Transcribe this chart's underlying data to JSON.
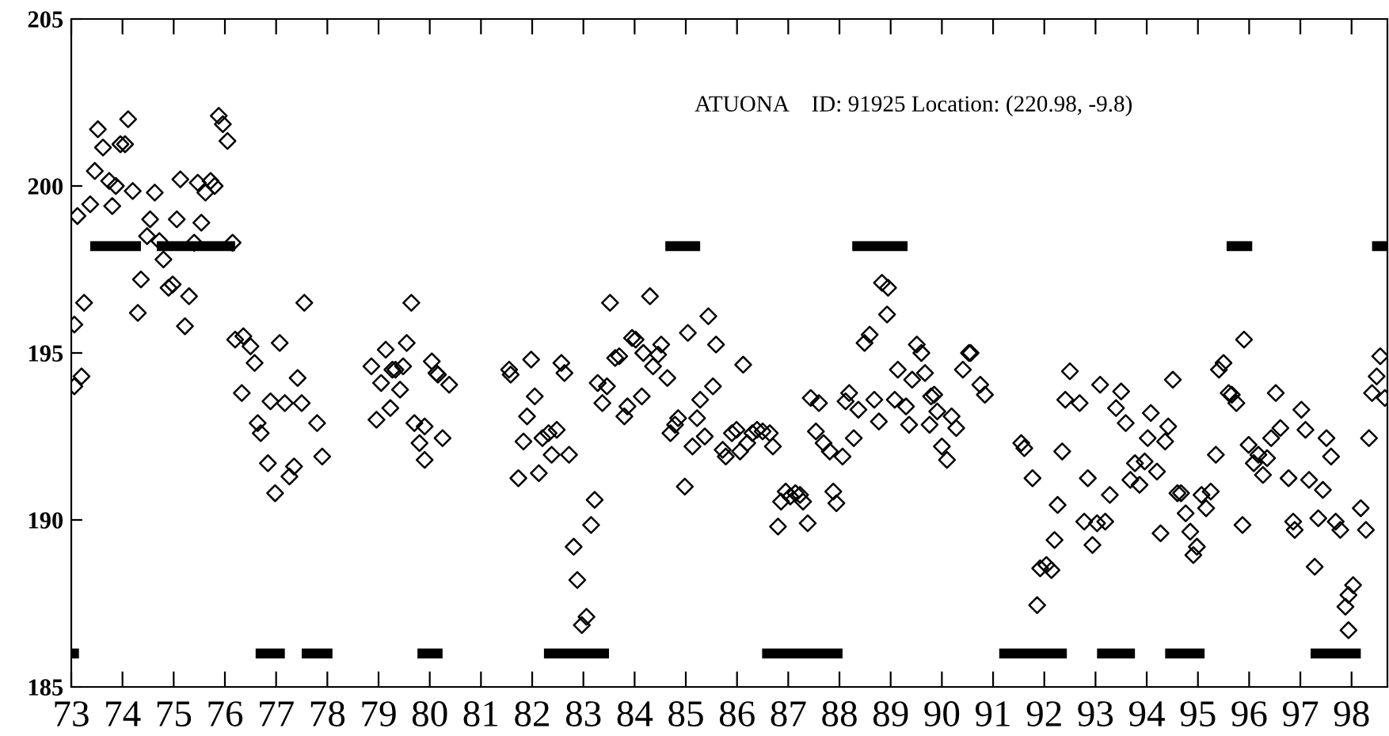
{
  "chart_data": {
    "type": "scatter",
    "xlim": [
      73,
      98.7
    ],
    "ylim": [
      185,
      205
    ],
    "xticks": [
      {
        "value": 73,
        "label": "73"
      },
      {
        "value": 74,
        "label": "74"
      },
      {
        "value": 75,
        "label": "75"
      },
      {
        "value": 76,
        "label": "76"
      },
      {
        "value": 77,
        "label": "77"
      },
      {
        "value": 78,
        "label": "78"
      },
      {
        "value": 79,
        "label": "79"
      },
      {
        "value": 80,
        "label": "80"
      },
      {
        "value": 81,
        "label": "81"
      },
      {
        "value": 82,
        "label": "82"
      },
      {
        "value": 83,
        "label": "83"
      },
      {
        "value": 84,
        "label": "84"
      },
      {
        "value": 85,
        "label": "85"
      },
      {
        "value": 86,
        "label": "86"
      },
      {
        "value": 87,
        "label": "87"
      },
      {
        "value": 88,
        "label": "88"
      },
      {
        "value": 89,
        "label": "89"
      },
      {
        "value": 90,
        "label": "90"
      },
      {
        "value": 91,
        "label": "91"
      },
      {
        "value": 92,
        "label": "92"
      },
      {
        "value": 93,
        "label": "93"
      },
      {
        "value": 94,
        "label": "94"
      },
      {
        "value": 95,
        "label": "95"
      },
      {
        "value": 96,
        "label": "96"
      },
      {
        "value": 97,
        "label": "97"
      },
      {
        "value": 98,
        "label": "98"
      }
    ],
    "yticks": [
      185,
      190,
      195,
      200,
      205
    ],
    "grid": false,
    "legend": false,
    "annotations": [
      "ATUONA    ID: 91925 Location: (220.98, -9.8)"
    ],
    "series": [
      {
        "marker": "diamond",
        "color": "#000000",
        "x": [
          73.06,
          73.12,
          73.25,
          73.06,
          73.2,
          73.37,
          73.46,
          73.52,
          73.62,
          73.74,
          73.8,
          73.87,
          73.96,
          74.05,
          74.11,
          74.2,
          74.3,
          74.36,
          74.48,
          74.54,
          74.63,
          74.72,
          74.8,
          74.9,
          74.98,
          75.06,
          75.13,
          75.22,
          75.3,
          75.4,
          75.47,
          75.54,
          75.62,
          75.72,
          75.8,
          75.88,
          75.96,
          76.05,
          76.15,
          76.2,
          76.33,
          76.36,
          76.5,
          76.58,
          76.64,
          76.7,
          76.84,
          76.89,
          76.98,
          77.07,
          77.17,
          77.26,
          77.35,
          77.42,
          77.5,
          77.55,
          77.8,
          77.9,
          78.86,
          78.96,
          79.05,
          79.14,
          79.23,
          79.27,
          79.33,
          79.42,
          79.48,
          79.55,
          79.64,
          79.7,
          79.8,
          79.9,
          79.9,
          80.04,
          80.13,
          80.16,
          80.25,
          80.38,
          81.55,
          81.58,
          81.73,
          81.83,
          81.9,
          81.98,
          82.05,
          82.13,
          82.2,
          82.32,
          82.38,
          82.48,
          82.57,
          82.63,
          82.72,
          82.81,
          82.88,
          82.97,
          83.06,
          83.15,
          83.22,
          83.28,
          83.37,
          83.46,
          83.52,
          83.62,
          83.7,
          83.8,
          83.86,
          83.95,
          84.02,
          84.14,
          84.17,
          84.3,
          84.36,
          84.46,
          84.52,
          84.64,
          84.7,
          84.79,
          84.85,
          84.98,
          85.04,
          85.13,
          85.22,
          85.28,
          85.37,
          85.44,
          85.53,
          85.59,
          85.72,
          85.78,
          85.9,
          85.99,
          86.06,
          86.12,
          86.2,
          86.3,
          86.39,
          86.5,
          86.64,
          86.7,
          86.8,
          86.86,
          86.95,
          87.04,
          87.14,
          87.23,
          87.29,
          87.38,
          87.44,
          87.54,
          87.6,
          87.69,
          87.81,
          87.88,
          87.94,
          88.06,
          88.12,
          88.19,
          88.28,
          88.37,
          88.49,
          88.59,
          88.68,
          88.77,
          88.83,
          88.93,
          88.95,
          89.08,
          89.14,
          89.3,
          89.36,
          89.42,
          89.51,
          89.6,
          89.67,
          89.76,
          89.79,
          89.85,
          89.91,
          90.0,
          90.1,
          90.19,
          90.28,
          90.41,
          90.53,
          90.56,
          90.75,
          90.84,
          91.55,
          91.61,
          91.77,
          91.86,
          91.92,
          92.04,
          92.14,
          92.2,
          92.26,
          92.35,
          92.41,
          92.5,
          92.69,
          92.78,
          92.85,
          92.94,
          93.03,
          93.09,
          93.19,
          93.28,
          93.4,
          93.5,
          93.59,
          93.68,
          93.77,
          93.86,
          93.96,
          94.02,
          94.08,
          94.2,
          94.27,
          94.36,
          94.42,
          94.51,
          94.6,
          94.67,
          94.76,
          94.85,
          94.91,
          94.98,
          95.07,
          95.16,
          95.25,
          95.35,
          95.41,
          95.5,
          95.6,
          95.66,
          95.75,
          95.87,
          95.9,
          95.99,
          96.09,
          96.18,
          96.27,
          96.35,
          96.43,
          96.52,
          96.61,
          96.77,
          96.86,
          96.89,
          97.02,
          97.1,
          97.17,
          97.28,
          97.35,
          97.44,
          97.51,
          97.6,
          97.69,
          97.78,
          97.88,
          97.94,
          97.94,
          98.03,
          98.18,
          98.28,
          98.34,
          98.4,
          98.49,
          98.56,
          98.65
        ],
        "values": [
          195.85,
          199.1,
          196.5,
          194.0,
          194.3,
          199.45,
          200.45,
          201.7,
          201.15,
          200.15,
          199.4,
          200.0,
          201.25,
          201.25,
          202.0,
          199.85,
          196.2,
          197.2,
          198.5,
          199.0,
          199.8,
          198.35,
          197.8,
          196.95,
          197.05,
          199.0,
          200.2,
          195.8,
          196.7,
          198.3,
          200.1,
          198.9,
          199.8,
          200.15,
          200.0,
          202.1,
          201.85,
          201.35,
          198.3,
          195.4,
          193.8,
          195.5,
          195.2,
          194.7,
          192.9,
          192.6,
          191.7,
          193.55,
          190.8,
          195.3,
          193.5,
          191.3,
          191.6,
          194.25,
          193.5,
          196.5,
          192.9,
          191.9,
          194.6,
          193.0,
          194.1,
          195.1,
          193.35,
          194.5,
          194.5,
          193.9,
          194.6,
          195.3,
          196.5,
          192.9,
          192.3,
          192.8,
          191.8,
          194.75,
          194.4,
          194.35,
          192.45,
          194.05,
          194.5,
          194.35,
          191.25,
          192.35,
          193.1,
          194.8,
          193.7,
          191.4,
          192.45,
          192.6,
          191.95,
          192.7,
          194.7,
          194.4,
          191.95,
          189.2,
          188.2,
          186.85,
          187.1,
          189.85,
          190.6,
          194.1,
          193.5,
          194.0,
          196.5,
          194.85,
          194.9,
          193.1,
          193.4,
          195.45,
          195.4,
          193.7,
          195.0,
          196.7,
          194.6,
          194.95,
          195.25,
          194.25,
          192.6,
          192.85,
          193.05,
          191.0,
          195.6,
          192.2,
          193.05,
          193.6,
          192.5,
          196.1,
          194.0,
          195.25,
          192.1,
          191.9,
          192.6,
          192.7,
          192.05,
          194.65,
          192.3,
          192.6,
          192.7,
          192.65,
          192.6,
          192.2,
          189.8,
          190.55,
          190.85,
          190.7,
          190.8,
          190.75,
          190.55,
          189.9,
          193.65,
          192.65,
          193.5,
          192.3,
          192.05,
          190.85,
          190.5,
          191.9,
          193.55,
          193.8,
          192.45,
          193.3,
          195.3,
          195.55,
          193.6,
          192.95,
          197.1,
          196.15,
          196.95,
          193.6,
          194.5,
          193.4,
          192.85,
          194.2,
          195.25,
          195.0,
          194.4,
          192.85,
          193.7,
          193.75,
          193.25,
          192.2,
          191.8,
          193.1,
          192.75,
          194.5,
          195.0,
          195.0,
          194.05,
          193.75,
          192.3,
          192.15,
          191.25,
          187.45,
          188.55,
          188.65,
          188.5,
          189.4,
          190.45,
          192.05,
          193.6,
          194.45,
          193.5,
          189.95,
          191.25,
          189.25,
          189.9,
          194.05,
          189.95,
          190.75,
          193.35,
          193.85,
          192.9,
          191.2,
          191.7,
          191.05,
          191.75,
          192.45,
          193.2,
          191.45,
          189.6,
          192.35,
          192.8,
          194.2,
          190.8,
          190.8,
          190.2,
          189.65,
          188.95,
          189.2,
          190.75,
          190.35,
          190.85,
          191.95,
          194.5,
          194.7,
          193.8,
          193.75,
          193.5,
          189.85,
          195.4,
          192.25,
          191.7,
          191.95,
          191.35,
          191.85,
          192.45,
          193.8,
          192.75,
          191.25,
          189.95,
          189.7,
          193.3,
          192.7,
          191.2,
          188.6,
          190.05,
          190.9,
          192.45,
          191.9,
          189.95,
          189.7,
          187.4,
          187.75,
          186.7,
          188.05,
          190.35,
          189.7,
          192.45,
          193.8,
          194.3,
          194.9,
          193.65
        ]
      },
      {
        "type": "line",
        "marker": "none",
        "line_style": "solid",
        "color": "#000000",
        "x": [
          73.37,
          74.36,
          74.5,
          74.67,
          76.2,
          80,
          84.6,
          85.28,
          86.5,
          88.25,
          89.33,
          92,
          95.56,
          96.06,
          97,
          98.4,
          98.7
        ],
        "values": [
          198.2,
          198.2,
          null,
          198.2,
          198.2,
          null,
          198.2,
          198.2,
          null,
          198.2,
          198.2,
          null,
          198.2,
          198.2,
          null,
          198.2,
          198.2
        ]
      },
      {
        "type": "line",
        "marker": "none",
        "line_style": "solid",
        "color": "#000000",
        "x": [
          73.0,
          73.15,
          75,
          76.6,
          77.17,
          77.3,
          77.5,
          78.1,
          79,
          79.76,
          80.25,
          81,
          82.23,
          83.5,
          85,
          86.49,
          88.06,
          90,
          91.12,
          92.44,
          92.7,
          93.03,
          93.77,
          94,
          94.36,
          95.13,
          96,
          97.2,
          98.18
        ],
        "values": [
          186,
          186,
          null,
          186,
          186,
          null,
          186,
          186,
          null,
          186,
          186,
          null,
          186,
          186,
          null,
          186,
          186,
          null,
          186,
          186,
          null,
          186,
          186,
          null,
          186,
          186,
          null,
          186,
          186
        ]
      }
    ]
  }
}
